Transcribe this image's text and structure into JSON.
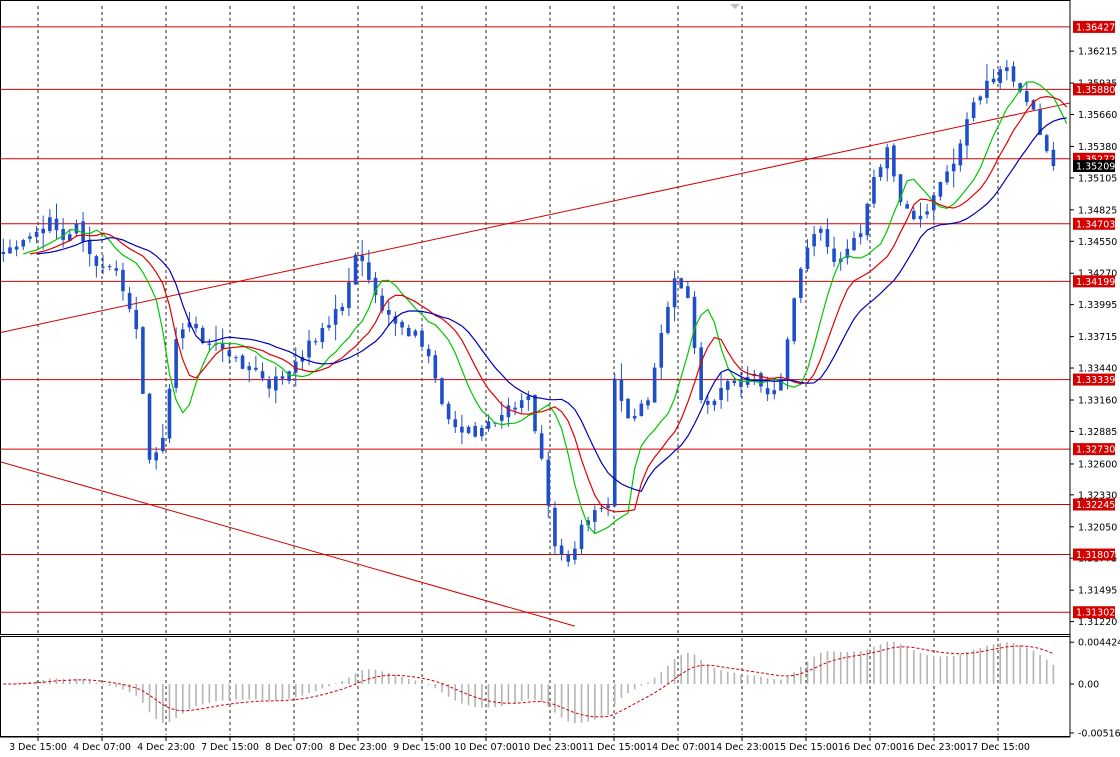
{
  "colors": {
    "background": "#ffffff",
    "grid": "#000000",
    "candles": "#1f4fc8",
    "level_lines": "#d40000",
    "level_label_bg": "#d40000",
    "level_label_text": "#ffffff",
    "ma_fast": "#00c800",
    "ma_mid": "#e00000",
    "ma_slow": "#0000b4",
    "macd_hist": "#b4b4b4",
    "macd_signal": "#d40000",
    "axis_text": "#000000",
    "price_label_bg": "#000000",
    "price_label_text": "#ffffff"
  },
  "chart_data": [
    {
      "type": "candlestick",
      "title": "",
      "xlabel": "",
      "ylabel": "",
      "grid": true,
      "ylim": [
        1.3112,
        1.3661
      ],
      "y_tick_labels": [
        "1.36215",
        "1.35935",
        "1.35660",
        "1.35380",
        "1.35105",
        "1.34825",
        "1.34550",
        "1.34270",
        "1.33995",
        "1.33715",
        "1.33440",
        "1.33160",
        "1.32885",
        "1.32600",
        "1.32330",
        "1.32050",
        "1.31775",
        "1.31495",
        "1.31220"
      ],
      "x_tick_labels": [
        "3 Dec 15:00",
        "4 Dec 07:00",
        "4 Dec 23:00",
        "7 Dec 15:00",
        "8 Dec 07:00",
        "8 Dec 23:00",
        "9 Dec 15:00",
        "10 Dec 07:00",
        "10 Dec 23:00",
        "11 Dec 15:00",
        "14 Dec 07:00",
        "14 Dec 23:00",
        "15 Dec 15:00",
        "16 Dec 07:00",
        "16 Dec 23:00",
        "17 Dec 15:00"
      ],
      "horizontal_levels": [
        "1.36427",
        "1.35880",
        "1.35272",
        "1.34703",
        "1.34199",
        "1.33339",
        "1.32730",
        "1.32245",
        "1.31807",
        "1.31302"
      ],
      "current_price": "1.35209",
      "trendlines": [
        {
          "from": [
            "3 Dec 15:00",
            1.3375
          ],
          "to": [
            "17 Dec 15:00",
            1.3563
          ],
          "extend": true
        },
        {
          "from": [
            "3 Dec 15:00",
            1.3262
          ],
          "to": [
            "11 Dec 15:00",
            1.3118
          ],
          "extend": false
        }
      ],
      "close_path": [
        [
          0,
          1.3447
        ],
        [
          3,
          1.3453
        ],
        [
          5,
          1.3462
        ],
        [
          7,
          1.3478
        ],
        [
          9,
          1.3459
        ],
        [
          11,
          1.3468
        ],
        [
          14,
          1.3435
        ],
        [
          17,
          1.3425
        ],
        [
          20,
          1.3381
        ],
        [
          22,
          1.3262
        ],
        [
          24,
          1.3282
        ],
        [
          26,
          1.3373
        ],
        [
          28,
          1.3381
        ],
        [
          31,
          1.3365
        ],
        [
          34,
          1.3357
        ],
        [
          37,
          1.3343
        ],
        [
          40,
          1.3328
        ],
        [
          43,
          1.3344
        ],
        [
          46,
          1.3365
        ],
        [
          49,
          1.3382
        ],
        [
          51,
          1.3402
        ],
        [
          53,
          1.3444
        ],
        [
          55,
          1.3425
        ],
        [
          57,
          1.3394
        ],
        [
          59,
          1.3379
        ],
        [
          62,
          1.3373
        ],
        [
          64,
          1.3352
        ],
        [
          66,
          1.3313
        ],
        [
          68,
          1.3291
        ],
        [
          71,
          1.3287
        ],
        [
          74,
          1.3299
        ],
        [
          77,
          1.3312
        ],
        [
          79,
          1.3318
        ],
        [
          81,
          1.3262
        ],
        [
          83,
          1.3192
        ],
        [
          85,
          1.3174
        ],
        [
          87,
          1.3206
        ],
        [
          89,
          1.3221
        ],
        [
          91,
          1.3226
        ],
        [
          92,
          1.3333
        ],
        [
          94,
          1.3297
        ],
        [
          97,
          1.3318
        ],
        [
          99,
          1.3378
        ],
        [
          101,
          1.3425
        ],
        [
          103,
          1.3402
        ],
        [
          105,
          1.3313
        ],
        [
          107,
          1.3316
        ],
        [
          109,
          1.3329
        ],
        [
          111,
          1.3331
        ],
        [
          113,
          1.3342
        ],
        [
          115,
          1.3317
        ],
        [
          117,
          1.3337
        ],
        [
          119,
          1.3407
        ],
        [
          121,
          1.3452
        ],
        [
          123,
          1.3464
        ],
        [
          125,
          1.3436
        ],
        [
          127,
          1.3445
        ],
        [
          129,
          1.3465
        ],
        [
          131,
          1.3509
        ],
        [
          133,
          1.3535
        ],
        [
          135,
          1.3489
        ],
        [
          137,
          1.3477
        ],
        [
          139,
          1.3485
        ],
        [
          141,
          1.3503
        ],
        [
          143,
          1.3525
        ],
        [
          145,
          1.3563
        ],
        [
          147,
          1.3585
        ],
        [
          149,
          1.3598
        ],
        [
          151,
          1.3606
        ],
        [
          153,
          1.3586
        ],
        [
          155,
          1.3567
        ],
        [
          157,
          1.3531
        ],
        [
          158,
          1.3521
        ]
      ]
    },
    {
      "type": "macd",
      "title": "",
      "ylim": [
        -0.00538,
        0.00487
      ],
      "y_tick_labels": [
        "0.004424",
        "0.00",
        "-0.005161"
      ]
    }
  ]
}
